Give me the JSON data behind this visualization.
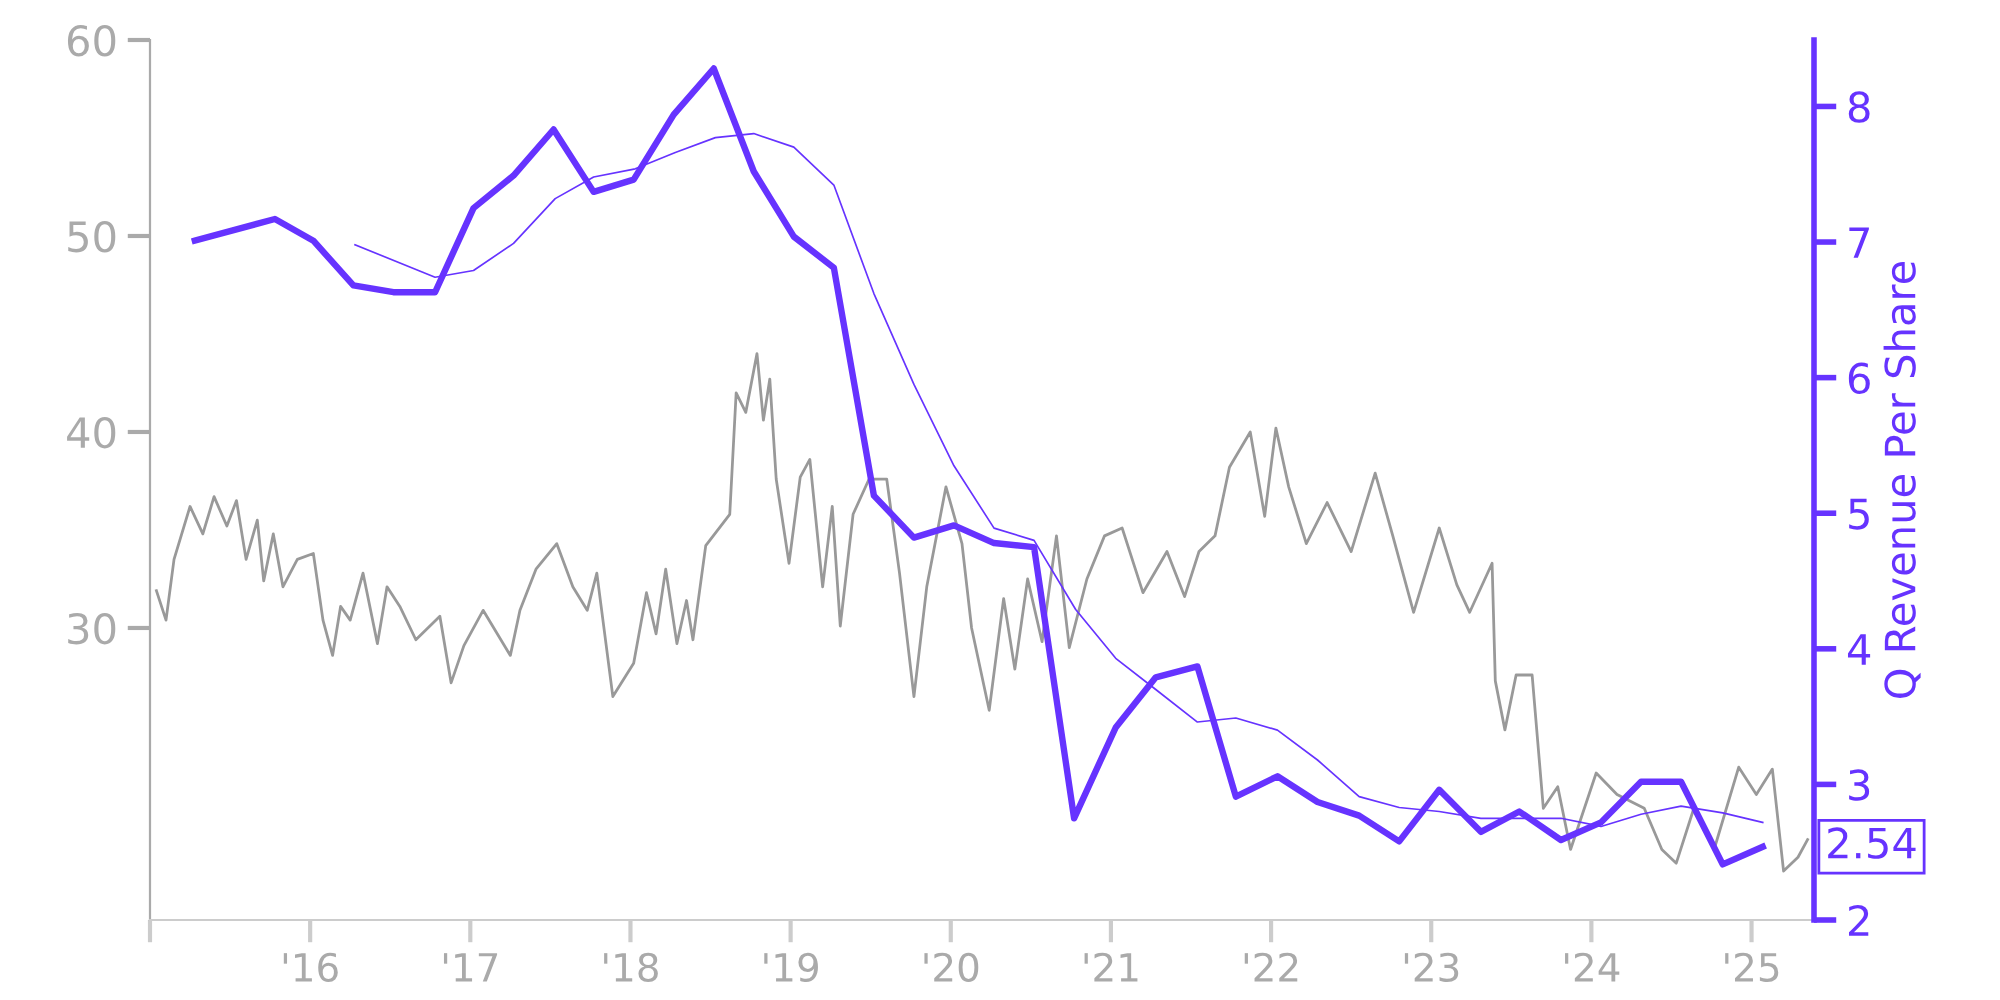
{
  "chart_data": {
    "type": "line",
    "y2label": "Q Revenue Per Share",
    "xlim": [
      2015.0,
      2025.39
    ],
    "xticks": [
      {
        "value": 2015,
        "label": null
      },
      {
        "value": 2016,
        "label": "'16"
      },
      {
        "value": 2017,
        "label": "'17"
      },
      {
        "value": 2018,
        "label": "'18"
      },
      {
        "value": 2019,
        "label": "'19"
      },
      {
        "value": 2020,
        "label": "'20"
      },
      {
        "value": 2021,
        "label": "'21"
      },
      {
        "value": 2022,
        "label": "'22"
      },
      {
        "value": 2023,
        "label": "'23"
      },
      {
        "value": 2024,
        "label": "'24"
      },
      {
        "value": 2025,
        "label": "'25"
      }
    ],
    "ylim": [
      15.1,
      60
    ],
    "yticks": [
      30,
      40,
      50,
      60
    ],
    "y2lim": [
      2,
      8.49
    ],
    "y2ticks": [
      2,
      3,
      4,
      5,
      6,
      7,
      8
    ],
    "grid": false,
    "marker": "none",
    "line_style": "solid",
    "series": [
      {
        "color": "#999999",
        "axis": "y",
        "x": [
          2015.04,
          2015.1,
          2015.15,
          2015.25,
          2015.33,
          2015.4,
          2015.48,
          2015.54,
          2015.6,
          2015.67,
          2015.71,
          2015.77,
          2015.83,
          2015.92,
          2016.02,
          2016.08,
          2016.14,
          2016.19,
          2016.25,
          2016.33,
          2016.42,
          2016.48,
          2016.56,
          2016.66,
          2016.81,
          2016.88,
          2016.96,
          2017.08,
          2017.25,
          2017.31,
          2017.41,
          2017.54,
          2017.64,
          2017.73,
          2017.79,
          2017.89,
          2018.02,
          2018.1,
          2018.16,
          2018.22,
          2018.29,
          2018.35,
          2018.39,
          2018.47,
          2018.62,
          2018.66,
          2018.72,
          2018.79,
          2018.83,
          2018.87,
          2018.91,
          2018.99,
          2019.06,
          2019.12,
          2019.2,
          2019.26,
          2019.31,
          2019.39,
          2019.49,
          2019.6,
          2019.68,
          2019.77,
          2019.85,
          2019.97,
          2020.07,
          2020.13,
          2020.24,
          2020.33,
          2020.4,
          2020.48,
          2020.57,
          2020.66,
          2020.74,
          2020.85,
          2020.96,
          2021.07,
          2021.2,
          2021.35,
          2021.46,
          2021.55,
          2021.65,
          2021.74,
          2021.87,
          2021.96,
          2022.03,
          2022.11,
          2022.22,
          2022.35,
          2022.5,
          2022.65,
          2022.76,
          2022.89,
          2023.05,
          2023.16,
          2023.24,
          2023.38,
          2023.4,
          2023.46,
          2023.53,
          2023.63,
          2023.7,
          2023.79,
          2023.87,
          2024.03,
          2024.16,
          2024.33,
          2024.44,
          2024.53,
          2024.64,
          2024.77,
          2024.92,
          2025.03,
          2025.13,
          2025.2,
          2025.29,
          2025.35
        ],
        "values": [
          31.9,
          30.4,
          33.5,
          36.2,
          34.8,
          36.7,
          35.2,
          36.5,
          33.5,
          35.5,
          32.4,
          34.8,
          32.1,
          33.5,
          33.8,
          30.4,
          28.6,
          31.1,
          30.4,
          32.8,
          29.2,
          32.1,
          31.1,
          29.4,
          30.6,
          27.2,
          29.1,
          30.9,
          28.6,
          30.9,
          33.0,
          34.3,
          32.1,
          30.9,
          32.8,
          26.5,
          28.2,
          31.8,
          29.7,
          33.0,
          29.2,
          31.4,
          29.4,
          34.2,
          35.8,
          42.0,
          41.0,
          44.0,
          40.6,
          42.7,
          37.6,
          33.3,
          37.7,
          38.6,
          32.1,
          36.2,
          30.1,
          35.8,
          37.6,
          37.6,
          32.8,
          26.5,
          32.1,
          37.2,
          34.3,
          30.0,
          25.8,
          31.5,
          27.9,
          32.5,
          29.3,
          34.7,
          29.0,
          32.5,
          34.7,
          35.1,
          31.8,
          33.9,
          31.6,
          33.9,
          34.7,
          38.2,
          40.0,
          35.7,
          40.2,
          37.2,
          34.3,
          36.4,
          33.9,
          37.9,
          34.7,
          30.8,
          35.1,
          32.2,
          30.8,
          33.3,
          27.3,
          24.8,
          27.6,
          27.6,
          20.8,
          21.9,
          18.7,
          22.6,
          21.5,
          20.8,
          18.7,
          18.0,
          20.8,
          18.8,
          22.9,
          21.5,
          22.8,
          17.6,
          18.3,
          19.2
        ]
      },
      {
        "color": "#6633ff",
        "axis": "y2",
        "x": [
          2015.28,
          2015.78,
          2016.02,
          2016.27,
          2016.52,
          2016.78,
          2017.02,
          2017.27,
          2017.52,
          2017.77,
          2018.02,
          2018.27,
          2018.52,
          2018.77,
          2019.02,
          2019.27,
          2019.52,
          2019.77,
          2020.02,
          2020.27,
          2020.52,
          2020.77,
          2021.03,
          2021.28,
          2021.54,
          2021.78,
          2022.04,
          2022.29,
          2022.55,
          2022.8,
          2023.05,
          2023.31,
          2023.55,
          2023.81,
          2024.06,
          2024.31,
          2024.56,
          2024.82,
          2025.07
        ],
        "values": [
          7.01,
          7.17,
          7.01,
          6.68,
          6.63,
          6.63,
          7.25,
          7.49,
          7.83,
          7.37,
          7.46,
          7.94,
          8.28,
          7.52,
          7.04,
          6.81,
          5.13,
          4.82,
          4.91,
          4.78,
          4.75,
          2.75,
          3.42,
          3.79,
          3.87,
          2.91,
          3.06,
          2.87,
          2.77,
          2.58,
          2.96,
          2.65,
          2.8,
          2.59,
          2.72,
          3.02,
          3.02,
          2.41,
          2.54
        ]
      },
      {
        "color": "#6633ff",
        "axis": "y2",
        "x": [
          2016.28,
          2016.78,
          2017.02,
          2017.27,
          2017.53,
          2017.77,
          2018.03,
          2018.28,
          2018.53,
          2018.77,
          2019.02,
          2019.27,
          2019.52,
          2019.77,
          2020.02,
          2020.27,
          2020.52,
          2020.78,
          2021.03,
          2021.28,
          2021.54,
          2021.78,
          2022.04,
          2022.29,
          2022.55,
          2022.8,
          2023.05,
          2023.31,
          2023.55,
          2023.81,
          2024.06,
          2024.31,
          2024.56,
          2024.82,
          2025.07
        ],
        "values": [
          6.98,
          6.74,
          6.79,
          6.99,
          7.32,
          7.48,
          7.54,
          7.66,
          7.77,
          7.8,
          7.7,
          7.42,
          6.62,
          5.95,
          5.35,
          4.89,
          4.8,
          4.29,
          3.93,
          3.7,
          3.46,
          3.49,
          3.4,
          3.18,
          2.91,
          2.83,
          2.8,
          2.75,
          2.75,
          2.75,
          2.69,
          2.78,
          2.84,
          2.79,
          2.72
        ]
      }
    ],
    "annotations": [
      "2.54"
    ]
  }
}
